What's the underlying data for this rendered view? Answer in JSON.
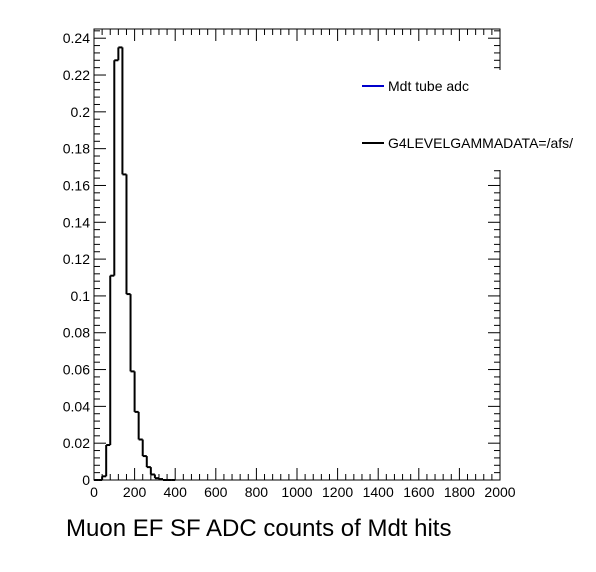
{
  "chart_data": {
    "type": "histogram",
    "xlabel": "Muon EF SF ADC counts of Mdt hits",
    "ylabel": "",
    "xlim": [
      0,
      2000
    ],
    "ylim": [
      0,
      0.245
    ],
    "grid": false,
    "legend_position": "top-right",
    "x_ticks": [
      0,
      200,
      400,
      600,
      800,
      1000,
      1200,
      1400,
      1600,
      1800,
      2000
    ],
    "x_tick_labels": [
      "0",
      "200",
      "400",
      "600",
      "800",
      "1000",
      "1200",
      "1400",
      "1600",
      "1800",
      "2000"
    ],
    "y_ticks": [
      0,
      0.02,
      0.04,
      0.06,
      0.08,
      0.1,
      0.12,
      0.14,
      0.16,
      0.18,
      0.2,
      0.22,
      0.24
    ],
    "y_tick_labels": [
      "0",
      "0.02",
      "0.04",
      "0.06",
      "0.08",
      "0.1",
      "0.12",
      "0.14",
      "0.16",
      "0.18",
      "0.2",
      "0.22",
      "0.24"
    ],
    "bin_width": 20,
    "series": [
      {
        "name": "Mdt tube adc",
        "color": "#0000cc",
        "bin_starts": [],
        "values": []
      },
      {
        "name": "G4LEVELGAMMADATA=/afs/",
        "color": "#000000",
        "bin_starts": [
          0,
          20,
          40,
          60,
          80,
          100,
          120,
          140,
          160,
          180,
          200,
          220,
          240,
          260,
          280,
          300,
          320,
          340,
          360,
          380
        ],
        "values": [
          0,
          0,
          0.002,
          0.019,
          0.111,
          0.228,
          0.235,
          0.166,
          0.101,
          0.059,
          0.037,
          0.022,
          0.013,
          0.007,
          0.003,
          0.001,
          0.0005,
          0,
          0,
          0
        ]
      }
    ]
  }
}
